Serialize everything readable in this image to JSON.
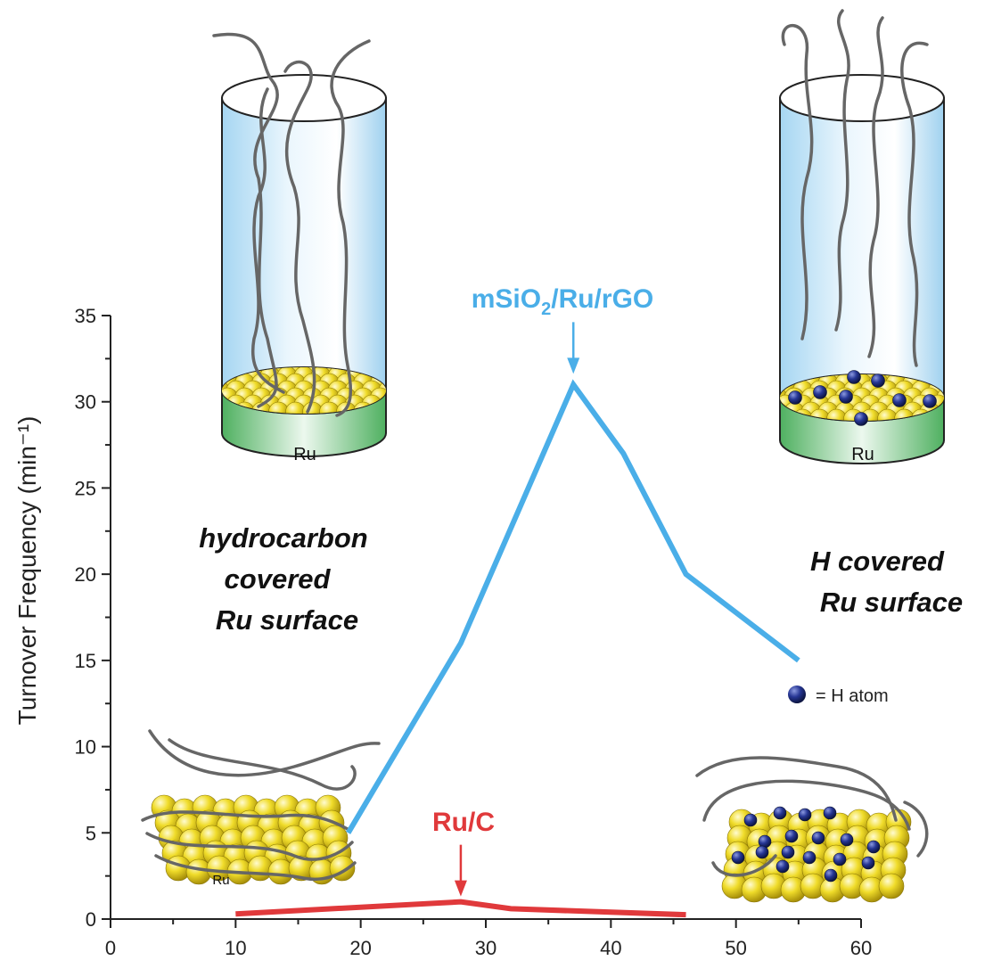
{
  "chart_data": {
    "type": "line",
    "xlabel": "",
    "ylabel": "Turnover Frequency (min⁻¹)",
    "xlim": [
      0,
      60
    ],
    "ylim": [
      0,
      35
    ],
    "x_ticks": [
      "0",
      "10",
      "20",
      "30",
      "40",
      "50",
      "60"
    ],
    "y_ticks": [
      "0",
      "5",
      "10",
      "15",
      "20",
      "25",
      "30",
      "35"
    ],
    "series": [
      {
        "name": "mSiO2/Ru/rGO",
        "color": "#4aaee8",
        "x": [
          19,
          28,
          37,
          41,
          46,
          55
        ],
        "y": [
          5,
          16,
          31,
          27,
          20,
          15
        ]
      },
      {
        "name": "Ru/C",
        "color": "#e0393b",
        "x": [
          10,
          28,
          32,
          46
        ],
        "y": [
          0.3,
          1,
          0.6,
          0.25
        ]
      }
    ],
    "annotations": {
      "msio2_pointer_at": {
        "x": 37,
        "y": 31
      },
      "ruc_pointer_at": {
        "x": 28,
        "y": 1
      }
    }
  },
  "labels": {
    "msio2_main": "mSiO",
    "msio2_sub": "2",
    "msio2_rest": "/Ru/rGO",
    "ruc": "Ru/C",
    "left_line1": "hydrocarbon",
    "left_line2": "covered",
    "left_line3": "Ru surface",
    "right_line1": "H covered",
    "right_line2": "Ru surface",
    "h_atom_legend": "= H atom",
    "ru_left_cylinder": "Ru",
    "ru_right_cylinder": "Ru",
    "ru_particle": "Ru"
  },
  "colors": {
    "axis": "#222222",
    "ru_gold": "#e8d21e",
    "h_atom": "#1f2a7a",
    "support_green": "#5fbf73",
    "pore_blue": "#bfe3f7"
  }
}
